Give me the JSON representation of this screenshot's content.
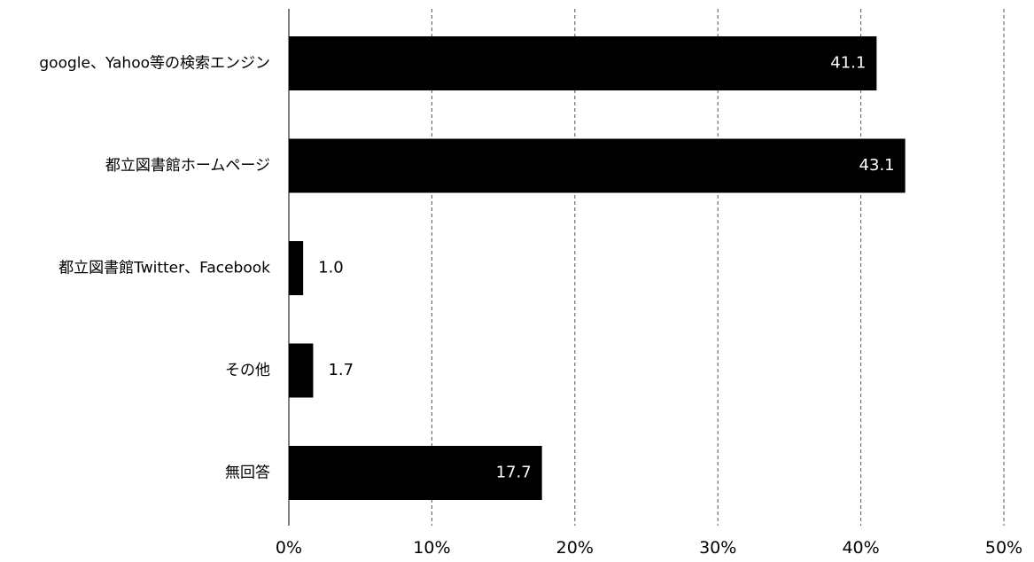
{
  "chart_data": {
    "type": "bar",
    "orientation": "horizontal",
    "title": "",
    "xlabel": "",
    "ylabel": "",
    "categories": [
      "google、Yahoo等の検索エンジン",
      "都立図書館ホームページ",
      "都立図書館Twitter、Facebook",
      "その他",
      "無回答"
    ],
    "values": [
      41.1,
      43.1,
      1.0,
      1.7,
      17.7
    ],
    "data_labels": [
      "41.1",
      "43.1",
      "1.0",
      "1.7",
      "17.7"
    ],
    "xlim": [
      0,
      50
    ],
    "x_ticks": [
      0,
      10,
      20,
      30,
      40,
      50
    ],
    "x_tick_labels": [
      "0%",
      "10%",
      "20%",
      "30%",
      "40%",
      "50%"
    ],
    "grid": "vertical-dashed",
    "legend": "none",
    "colors": {
      "bar": "#000000",
      "label_inside": "#ffffff",
      "label_outside": "#000000",
      "grid": "#555555",
      "axis": "#000000"
    }
  }
}
